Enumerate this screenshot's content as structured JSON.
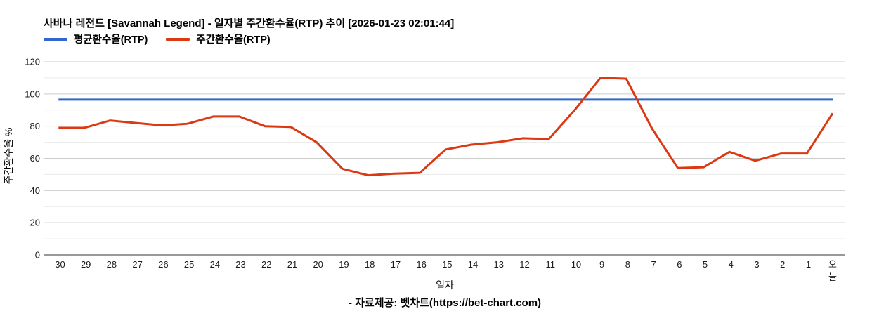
{
  "header": {
    "title": "사바나 레전드 [Savannah Legend] - 일자별 주간환수율(RTP) 추이 [2026-01-23 02:01:44]"
  },
  "legend": {
    "items": [
      {
        "label": "평균환수율(RTP)",
        "color": "#3366cc"
      },
      {
        "label": "주간환수율(RTP)",
        "color": "#dc3912"
      }
    ]
  },
  "footer": {
    "credit": "- 자료제공: 벳차트(https://bet-chart.com)"
  },
  "chart_data": {
    "type": "line",
    "title": "사바나 레전드 [Savannah Legend] - 일자별 주간환수율(RTP) 추이 [2026-01-23 02:01:44]",
    "xlabel": "일자",
    "ylabel": "주간환수율 %",
    "ylim": [
      0,
      120
    ],
    "yticks": [
      0,
      20,
      40,
      60,
      80,
      100,
      120
    ],
    "minor_gridline_step": 10,
    "grid": "horizontal",
    "legend_position": "top-left",
    "categories": [
      "-30",
      "-29",
      "-28",
      "-27",
      "-26",
      "-25",
      "-24",
      "-23",
      "-22",
      "-21",
      "-20",
      "-19",
      "-18",
      "-17",
      "-16",
      "-15",
      "-14",
      "-13",
      "-12",
      "-11",
      "-10",
      "-9",
      "-8",
      "-7",
      "-6",
      "-5",
      "-4",
      "-3",
      "-2",
      "-1",
      "오늘"
    ],
    "series": [
      {
        "name": "평균환수율(RTP)",
        "color": "#3366cc",
        "style": "constant",
        "value": 96.5
      },
      {
        "name": "주간환수율(RTP)",
        "color": "#dc3912",
        "style": "line",
        "values": [
          79,
          79,
          83.5,
          82,
          80.5,
          81.5,
          86,
          86,
          80,
          79.5,
          70,
          53.5,
          49.5,
          50.5,
          51,
          65.5,
          68.5,
          70,
          72.5,
          72,
          90,
          110,
          109.5,
          78.5,
          54,
          54.5,
          64,
          58.5,
          63,
          63,
          88
        ]
      }
    ],
    "colors": {
      "major_gridline": "#cccccc",
      "minor_gridline": "#e9e9e9",
      "baseline": "#333333",
      "tick_label": "#1a1a1a"
    }
  }
}
